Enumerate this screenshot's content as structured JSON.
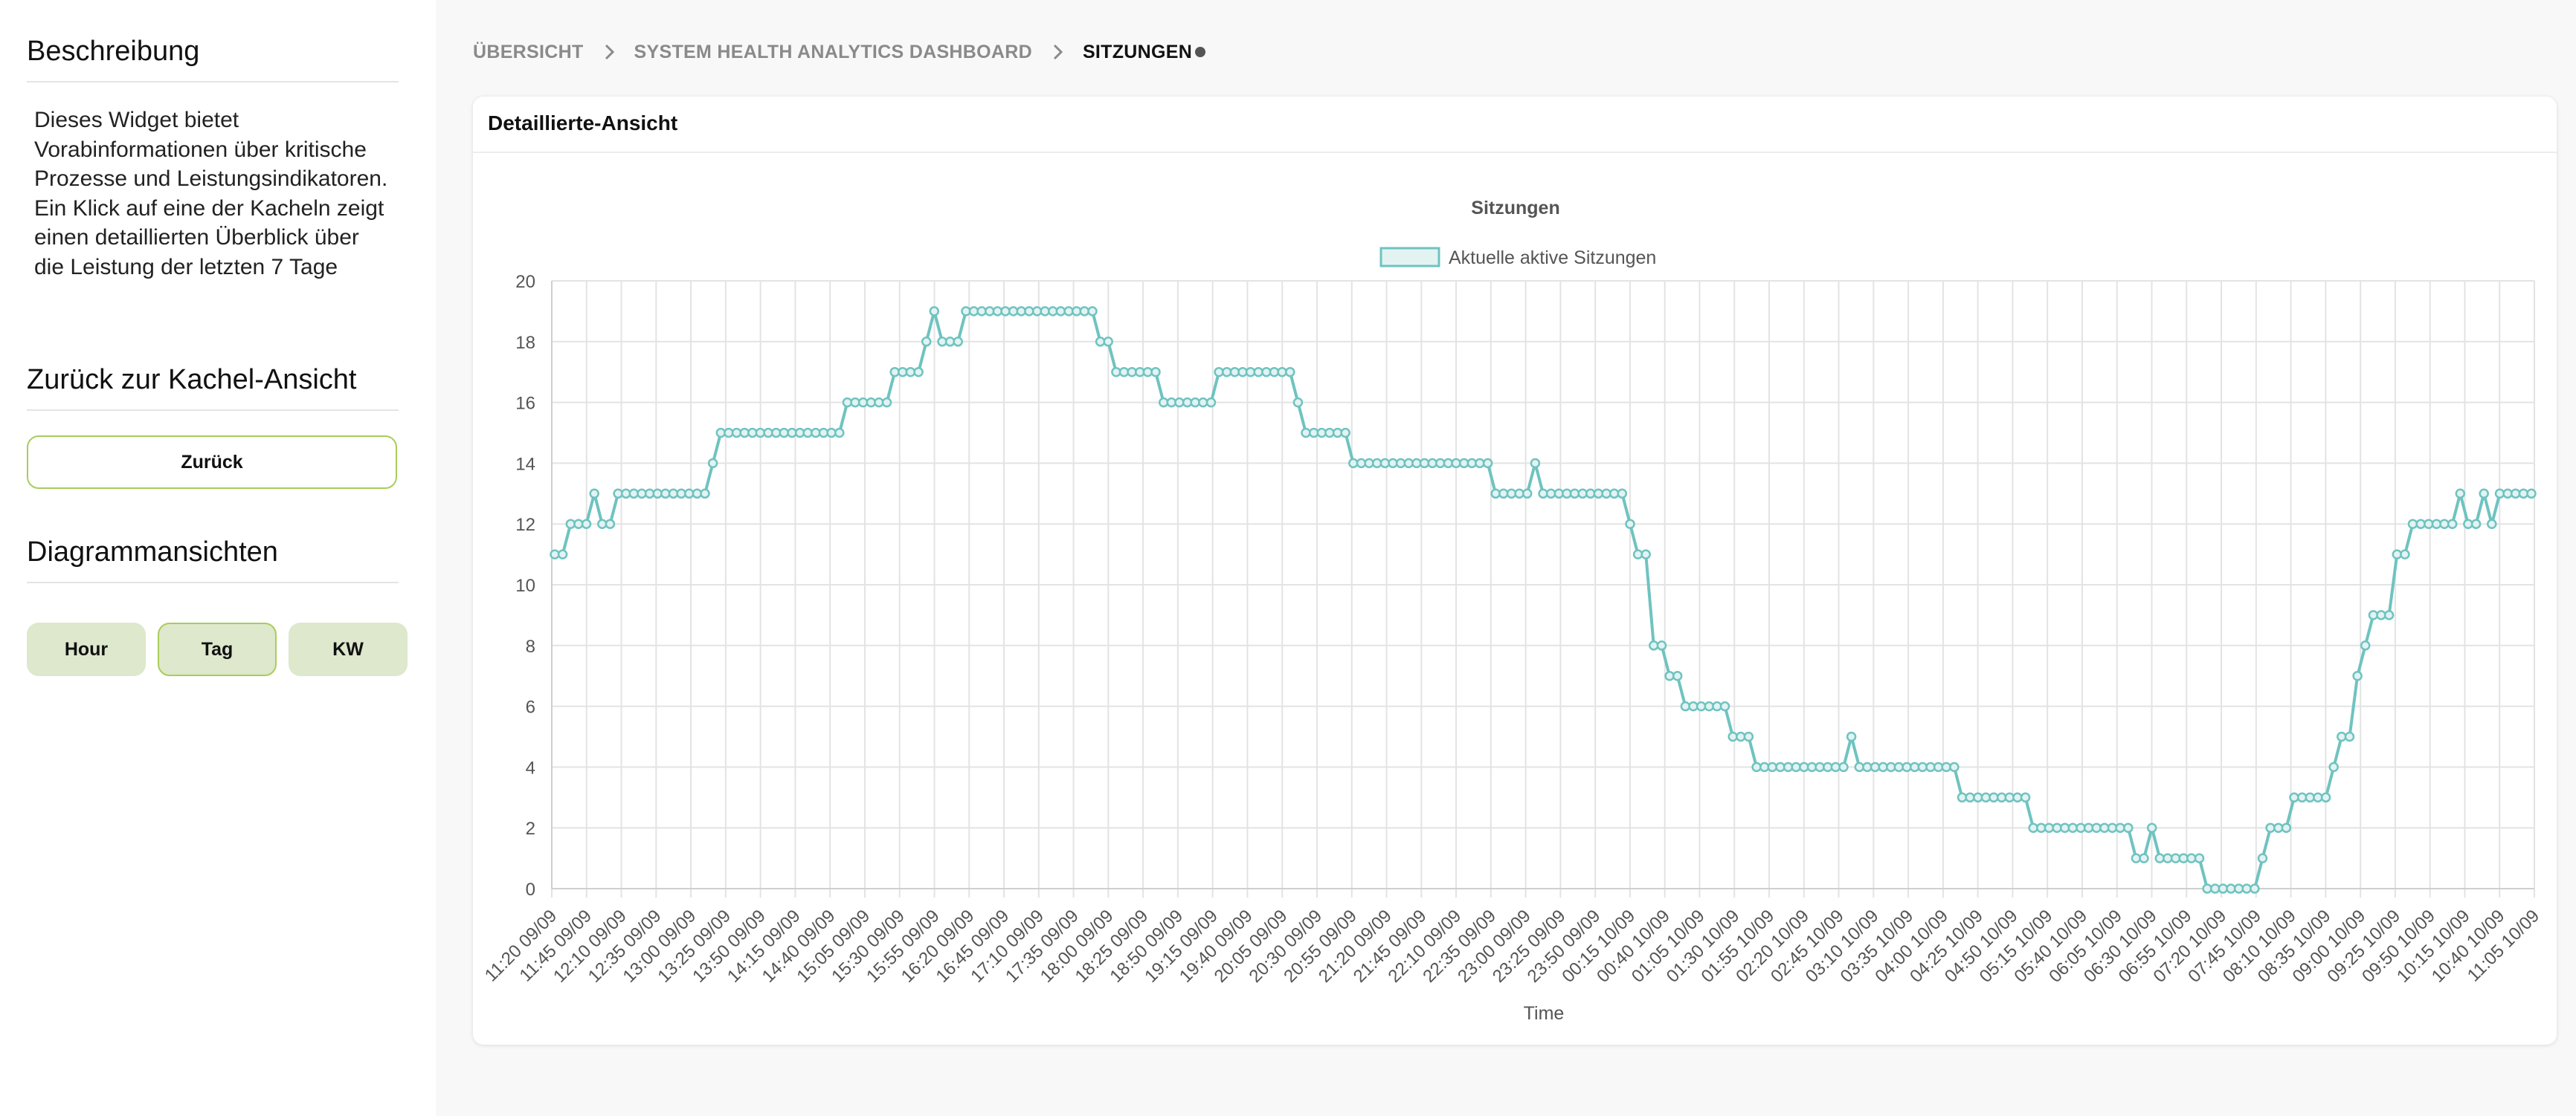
{
  "sidebar": {
    "description_heading": "Beschreibung",
    "description": "Dieses Widget bietet Vorabinformationen über kritische Prozesse und Leistungsindikatoren. Ein Klick auf eine der Kacheln zeigt einen detaillierten Überblick über die Leistung der letzten 7 Tage",
    "back_heading": "Zurück zur Kachel-Ansicht",
    "back_button": "Zurück",
    "views_heading": "Diagrammansichten",
    "view_buttons": [
      "Hour",
      "Tag",
      "KW"
    ],
    "active_view": "Tag"
  },
  "breadcrumb": {
    "items": [
      "ÜBERSICHT",
      "SYSTEM HEALTH ANALYTICS DASHBOARD"
    ],
    "current": "SITZUNGEN"
  },
  "card": {
    "title": "Detaillierte-Ansicht"
  },
  "colors": {
    "accent_green": "#a9cc5c",
    "button_fill": "#dde8cc",
    "series_line": "#6fc3c0",
    "series_fill": "#e3f3f2"
  },
  "chart_data": {
    "type": "line",
    "title": "Sitzungen",
    "xlabel": "Time",
    "ylabel": "",
    "ylim": [
      0,
      20
    ],
    "yticks": [
      0,
      2,
      4,
      6,
      8,
      10,
      12,
      14,
      16,
      18,
      20
    ],
    "grid": true,
    "legend_position": "top-center",
    "series_name": "Aktuelle aktive Sitzungen",
    "x_tick_labels": [
      "11:20 09/09",
      "11:45 09/09",
      "12:10 09/09",
      "12:35 09/09",
      "13:00 09/09",
      "13:25 09/09",
      "13:50 09/09",
      "14:15 09/09",
      "14:40 09/09",
      "15:05 09/09",
      "15:30 09/09",
      "15:55 09/09",
      "16:20 09/09",
      "16:45 09/09",
      "17:10 09/09",
      "17:35 09/09",
      "18:00 09/09",
      "18:25 09/09",
      "18:50 09/09",
      "19:15 09/09",
      "19:40 09/09",
      "20:05 09/09",
      "20:30 09/09",
      "20:55 09/09",
      "21:20 09/09",
      "21:45 09/09",
      "22:10 09/09",
      "22:35 09/09",
      "23:00 09/09",
      "23:25 09/09",
      "23:50 09/09",
      "00:15 10/09",
      "00:40 10/09",
      "01:05 10/09",
      "01:30 10/09",
      "01:55 10/09",
      "02:20 10/09",
      "02:45 10/09",
      "03:10 10/09",
      "03:35 10/09",
      "04:00 10/09",
      "04:25 10/09",
      "04:50 10/09",
      "05:15 10/09",
      "05:40 10/09",
      "06:05 10/09",
      "06:30 10/09",
      "06:55 10/09",
      "07:20 10/09",
      "07:45 10/09",
      "08:10 10/09",
      "08:35 10/09",
      "09:00 10/09",
      "09:25 10/09",
      "09:50 10/09",
      "10:15 10/09",
      "10:40 10/09",
      "11:05 10/09"
    ],
    "segments": [
      [
        11,
        2
      ],
      [
        12,
        3
      ],
      [
        13,
        1
      ],
      [
        12,
        2
      ],
      [
        13,
        12
      ],
      [
        14,
        1
      ],
      [
        15,
        16
      ],
      [
        16,
        6
      ],
      [
        17,
        4
      ],
      [
        18,
        1
      ],
      [
        19,
        1
      ],
      [
        18,
        3
      ],
      [
        19,
        17
      ],
      [
        18,
        2
      ],
      [
        17,
        6
      ],
      [
        16,
        7
      ],
      [
        17,
        10
      ],
      [
        16,
        1
      ],
      [
        15,
        6
      ],
      [
        14,
        18
      ],
      [
        13,
        5
      ],
      [
        14,
        1
      ],
      [
        13,
        11
      ],
      [
        12,
        1
      ],
      [
        11,
        2
      ],
      [
        8,
        2
      ],
      [
        7,
        2
      ],
      [
        6,
        6
      ],
      [
        5,
        3
      ],
      [
        4,
        12
      ],
      [
        5,
        1
      ],
      [
        4,
        13
      ],
      [
        3,
        9
      ],
      [
        2,
        13
      ],
      [
        1,
        2
      ],
      [
        2,
        1
      ],
      [
        1,
        6
      ],
      [
        0,
        7
      ],
      [
        1,
        1
      ],
      [
        2,
        3
      ],
      [
        3,
        5
      ],
      [
        4,
        1
      ],
      [
        5,
        2
      ],
      [
        7,
        1
      ],
      [
        8,
        1
      ],
      [
        9,
        3
      ],
      [
        11,
        2
      ],
      [
        12,
        6
      ],
      [
        13,
        1
      ],
      [
        12,
        2
      ],
      [
        13,
        1
      ],
      [
        12,
        1
      ],
      [
        13,
        5
      ]
    ]
  }
}
